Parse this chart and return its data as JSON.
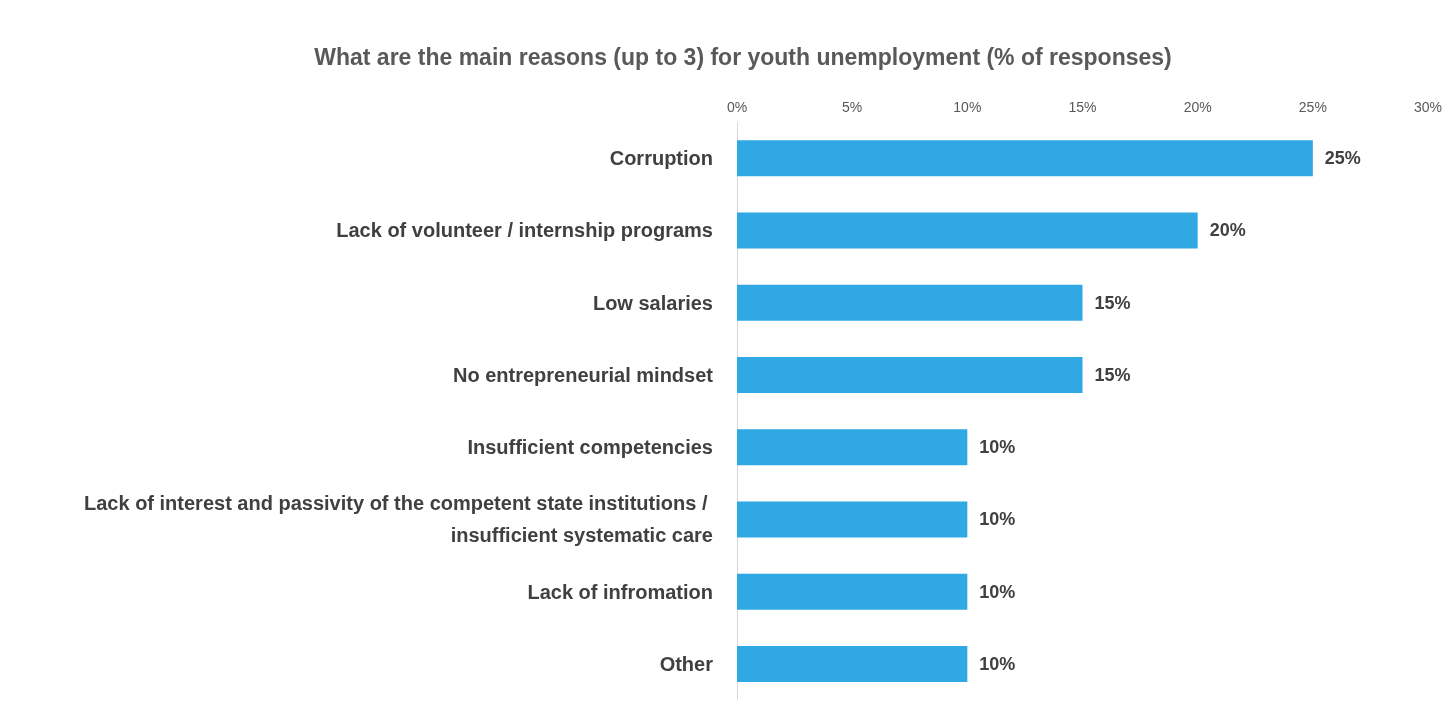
{
  "chart_data": {
    "type": "bar",
    "orientation": "horizontal",
    "title": "What are the main reasons (up to 3) for youth unemployment (% of responses)",
    "categories": [
      "Corruption",
      "Lack of volunteer / internship programs",
      "Low salaries",
      "No entrepreneurial mindset",
      "Insufficient competencies",
      "Lack of interest and passivity of the competent state institutions / insufficient systematic care",
      "Lack of infromation",
      "Other"
    ],
    "values": [
      25,
      20,
      15,
      15,
      10,
      10,
      10,
      10
    ],
    "value_labels": [
      "25%",
      "20%",
      "15%",
      "15%",
      "10%",
      "10%",
      "10%",
      "10%"
    ],
    "color": "#30a8e4",
    "xlim": [
      0,
      30
    ],
    "xticks": [
      {
        "value": 0,
        "label": "0%"
      },
      {
        "value": 5,
        "label": "5%"
      },
      {
        "value": 10,
        "label": "10%"
      },
      {
        "value": 15,
        "label": "15%"
      },
      {
        "value": 20,
        "label": "20%"
      },
      {
        "value": 25,
        "label": "25%"
      },
      {
        "value": 30,
        "label": "30%"
      }
    ],
    "grid": false
  }
}
